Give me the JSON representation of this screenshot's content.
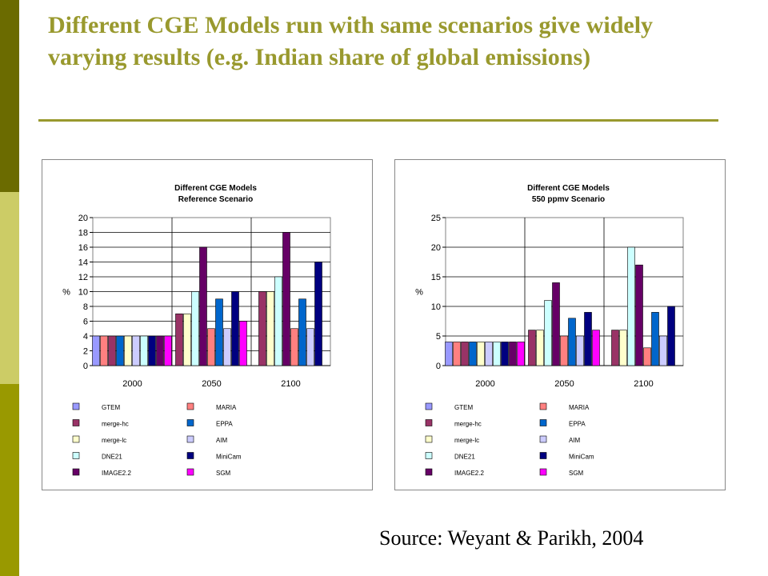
{
  "slide": {
    "title": "Different CGE Models run with same scenarios give widely varying results (e.g. Indian share of global emissions)",
    "source": "Source: Weyant & Parikh, 2004",
    "accent_color": "#99992e"
  },
  "chart_data": [
    {
      "type": "bar",
      "title": "Different CGE Models",
      "subtitle": "Reference Scenario",
      "xlabel": "",
      "ylabel": "%",
      "ylim": [
        0,
        20
      ],
      "yticks": [
        0,
        2,
        4,
        6,
        8,
        10,
        12,
        14,
        16,
        18,
        20
      ],
      "categories": [
        "2000",
        "2050",
        "2100"
      ],
      "grid": true,
      "legend": "bottom",
      "series": [
        {
          "name": "GTEM",
          "color": "#9999ff",
          "values": [
            4,
            null,
            null
          ]
        },
        {
          "name": "MARIA",
          "color": "#ff8080",
          "values": [
            4,
            null,
            null
          ]
        },
        {
          "name": "merge-hc",
          "color": "#993366",
          "values": [
            4,
            7,
            10
          ]
        },
        {
          "name": "EPPA",
          "color": "#0066cc",
          "values": [
            4,
            null,
            null
          ]
        },
        {
          "name": "merge-lc",
          "color": "#ffffcc",
          "values": [
            4,
            7,
            10
          ]
        },
        {
          "name": "AIM",
          "color": "#ccccff",
          "values": [
            4,
            null,
            null
          ]
        },
        {
          "name": "DNE21",
          "color": "#ccffff",
          "values": [
            4,
            10,
            12
          ]
        },
        {
          "name": "MiniCam",
          "color": "#000080",
          "values": [
            4,
            null,
            null
          ]
        },
        {
          "name": "IMAGE2.2",
          "color": "#660066",
          "values": [
            4,
            16,
            18
          ]
        },
        {
          "name": "SGM",
          "color": "#ff00ff",
          "values": [
            4,
            null,
            null
          ]
        },
        {
          "name": "",
          "color": "#ff8080",
          "values": [
            null,
            5,
            5
          ]
        },
        {
          "name": "",
          "color": "#0066cc",
          "values": [
            null,
            9,
            9
          ]
        },
        {
          "name": "",
          "color": "#ccccff",
          "values": [
            null,
            5,
            5
          ]
        },
        {
          "name": "",
          "color": "#000080",
          "values": [
            null,
            10,
            14
          ]
        },
        {
          "name": "",
          "color": "#ff00ff",
          "values": [
            null,
            6,
            null
          ]
        }
      ]
    },
    {
      "type": "bar",
      "title": "Different CGE Models",
      "subtitle": "550 ppmv Scenario",
      "xlabel": "",
      "ylabel": "%",
      "ylim": [
        0,
        25
      ],
      "yticks": [
        0,
        5,
        10,
        15,
        20,
        25
      ],
      "categories": [
        "2000",
        "2050",
        "2100"
      ],
      "grid": true,
      "legend": "bottom",
      "series": [
        {
          "name": "GTEM",
          "color": "#9999ff",
          "values": [
            4,
            null,
            null
          ]
        },
        {
          "name": "MARIA",
          "color": "#ff8080",
          "values": [
            4,
            null,
            null
          ]
        },
        {
          "name": "merge-hc",
          "color": "#993366",
          "values": [
            4,
            6,
            6
          ]
        },
        {
          "name": "EPPA",
          "color": "#0066cc",
          "values": [
            4,
            null,
            null
          ]
        },
        {
          "name": "merge-lc",
          "color": "#ffffcc",
          "values": [
            4,
            6,
            6
          ]
        },
        {
          "name": "AIM",
          "color": "#ccccff",
          "values": [
            4,
            null,
            null
          ]
        },
        {
          "name": "DNE21",
          "color": "#ccffff",
          "values": [
            4,
            11,
            20
          ]
        },
        {
          "name": "MiniCam",
          "color": "#000080",
          "values": [
            4,
            null,
            null
          ]
        },
        {
          "name": "IMAGE2.2",
          "color": "#660066",
          "values": [
            4,
            14,
            17
          ]
        },
        {
          "name": "SGM",
          "color": "#ff00ff",
          "values": [
            4,
            null,
            null
          ]
        },
        {
          "name": "",
          "color": "#ff8080",
          "values": [
            null,
            5,
            3
          ]
        },
        {
          "name": "",
          "color": "#0066cc",
          "values": [
            null,
            8,
            9
          ]
        },
        {
          "name": "",
          "color": "#ccccff",
          "values": [
            null,
            5,
            5
          ]
        },
        {
          "name": "",
          "color": "#000080",
          "values": [
            null,
            9,
            10
          ]
        },
        {
          "name": "",
          "color": "#ff00ff",
          "values": [
            null,
            6,
            null
          ]
        }
      ]
    }
  ]
}
